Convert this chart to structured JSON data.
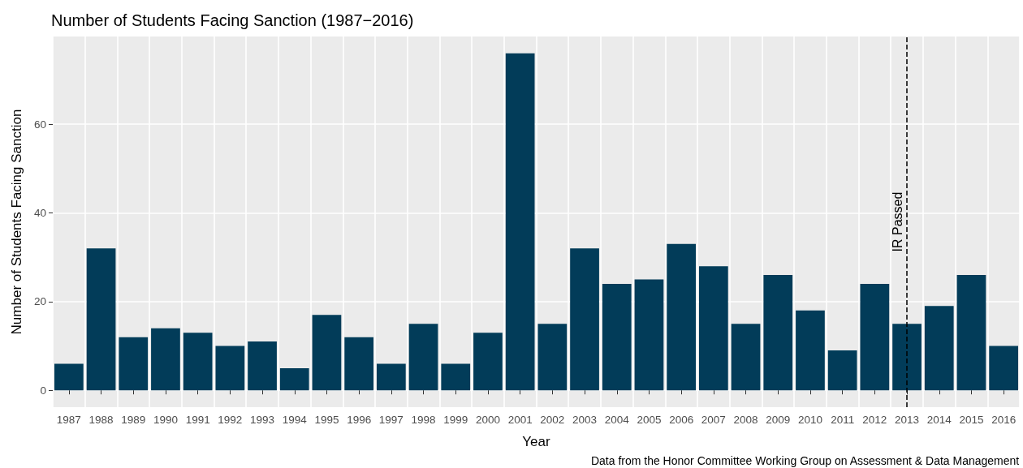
{
  "chart_data": {
    "type": "bar",
    "title": "Number of Students Facing Sanction (1987−2016)",
    "xlabel": "Year",
    "ylabel": "Number of Students Facing Sanction",
    "categories": [
      "1987",
      "1988",
      "1989",
      "1990",
      "1991",
      "1992",
      "1993",
      "1994",
      "1995",
      "1996",
      "1997",
      "1998",
      "1999",
      "2000",
      "2001",
      "2002",
      "2003",
      "2004",
      "2005",
      "2006",
      "2007",
      "2008",
      "2009",
      "2010",
      "2011",
      "2012",
      "2013",
      "2014",
      "2015",
      "2016"
    ],
    "values": [
      6,
      32,
      12,
      14,
      13,
      10,
      11,
      5,
      17,
      12,
      6,
      15,
      6,
      13,
      76,
      15,
      32,
      24,
      25,
      33,
      28,
      15,
      26,
      18,
      9,
      24,
      15,
      19,
      26,
      10
    ],
    "color": "#023c59",
    "ylim": [
      -3.8,
      79.8
    ],
    "yticks": [
      0,
      20,
      40,
      60
    ],
    "grid": true,
    "ref_lines": [
      {
        "axis": "x",
        "value": "2013",
        "label": "IR Passed",
        "line_style": "dashed",
        "color": "#000000"
      }
    ],
    "annotations": [
      "Data from the Honor Committee Working Group on Assessment & Data Management"
    ]
  }
}
